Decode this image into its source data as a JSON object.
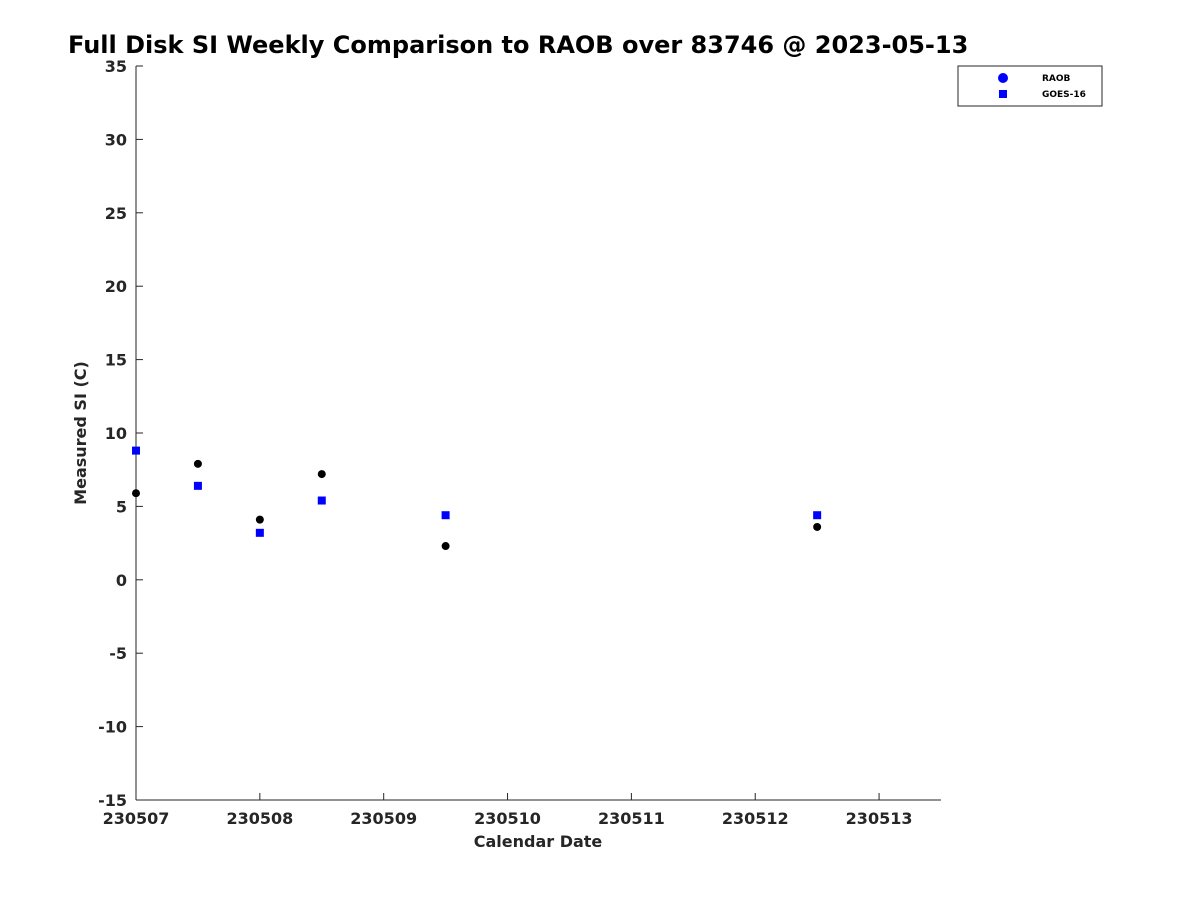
{
  "chart_data": {
    "type": "scatter",
    "title": "Full Disk SI Weekly Comparison to RAOB over 83746 @ 2023-05-13",
    "xlabel": "Calendar Date",
    "ylabel": "Measured SI (C)",
    "xlim": [
      "2023-05-07",
      "2023-05-13 12:00"
    ],
    "ylim": [
      -15,
      35
    ],
    "x_ticks": [
      {
        "value": "2023-05-07",
        "label": "230507"
      },
      {
        "value": "2023-05-08",
        "label": "230508"
      },
      {
        "value": "2023-05-09",
        "label": "230509"
      },
      {
        "value": "2023-05-10",
        "label": "230510"
      },
      {
        "value": "2023-05-11",
        "label": "230511"
      },
      {
        "value": "2023-05-12",
        "label": "230512"
      },
      {
        "value": "2023-05-13",
        "label": "230513"
      }
    ],
    "y_ticks": [
      35,
      30,
      25,
      20,
      15,
      10,
      5,
      0,
      -5,
      -10,
      -15
    ],
    "grid": false,
    "legend": {
      "position": "top-right"
    },
    "series": [
      {
        "name": "RAOB",
        "marker": "circle",
        "color": "#000000",
        "legend_color": "#0000ff",
        "points": [
          {
            "x": "2023-05-07 00:00",
            "y": 5.9
          },
          {
            "x": "2023-05-07 12:00",
            "y": 7.9
          },
          {
            "x": "2023-05-08 00:00",
            "y": 4.1
          },
          {
            "x": "2023-05-08 12:00",
            "y": 7.2
          },
          {
            "x": "2023-05-09 12:00",
            "y": 2.3
          },
          {
            "x": "2023-05-12 12:00",
            "y": 3.6
          }
        ]
      },
      {
        "name": "GOES-16",
        "marker": "square",
        "color": "#0000ff",
        "legend_color": "#0000ff",
        "points": [
          {
            "x": "2023-05-07 00:00",
            "y": 8.8
          },
          {
            "x": "2023-05-07 12:00",
            "y": 6.4
          },
          {
            "x": "2023-05-08 00:00",
            "y": 3.2
          },
          {
            "x": "2023-05-08 12:00",
            "y": 5.4
          },
          {
            "x": "2023-05-09 12:00",
            "y": 4.4
          },
          {
            "x": "2023-05-12 12:00",
            "y": 4.4
          }
        ]
      }
    ]
  }
}
